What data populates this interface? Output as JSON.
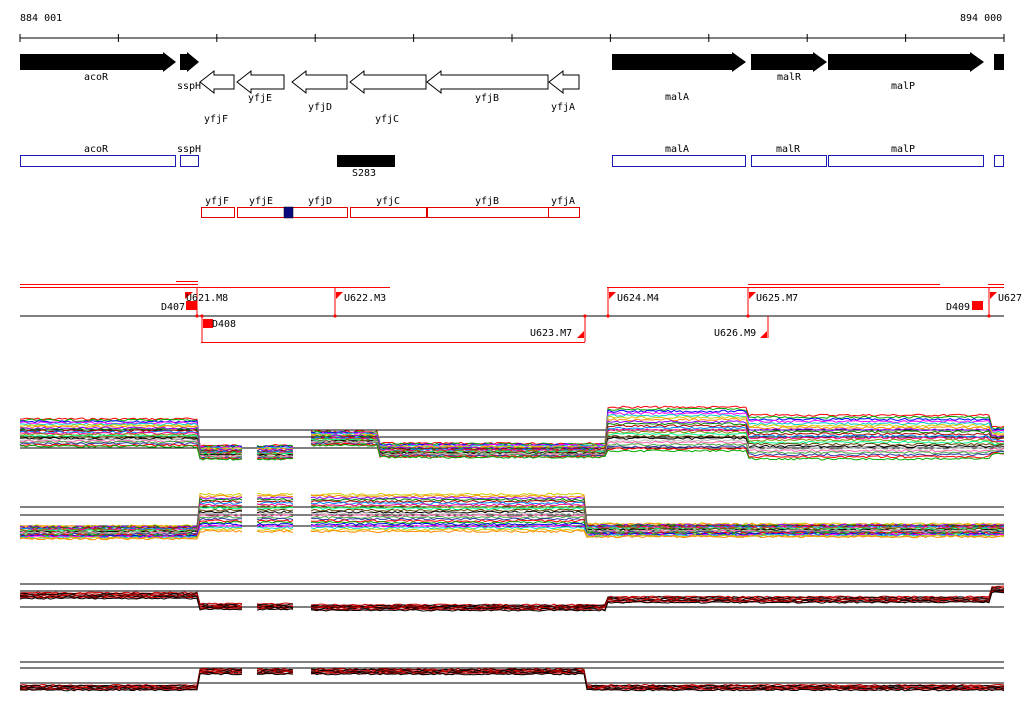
{
  "coords": {
    "start": "884 001",
    "end": "894 000"
  },
  "colors": {
    "gene_fill": "#000000",
    "annot_blue": "#1a1ab4",
    "annot_red": "#e00000",
    "segment_red": "#ff0000"
  },
  "genes_forward": [
    "acoR",
    "sspH",
    "malA",
    "malR",
    "malP",
    ""
  ],
  "genes_reverse": [
    "yfjF",
    "yfjE",
    "yfjD",
    "yfjC",
    "yfjB",
    "yfjA"
  ],
  "blue_annotations": [
    "acoR",
    "sspH",
    "malA",
    "malR",
    "malP",
    ""
  ],
  "feature": "S283",
  "red_annotations": [
    "yfjF",
    "yfjE",
    "yfjD",
    "yfjC",
    "yfjB",
    "yfjA"
  ],
  "markers_above": [
    "U621.M8",
    "D407",
    "U622.M3",
    "U624.M4",
    "U625.M7",
    "D409",
    "U627"
  ],
  "markers_below": [
    "D408",
    "U623.M7",
    "U626.M9"
  ],
  "tracks": [
    {
      "name": "track-1",
      "style": "multicolor"
    },
    {
      "name": "track-2",
      "style": "multicolor"
    },
    {
      "name": "track-3",
      "style": "red-black"
    },
    {
      "name": "track-4",
      "style": "red-black"
    }
  ]
}
